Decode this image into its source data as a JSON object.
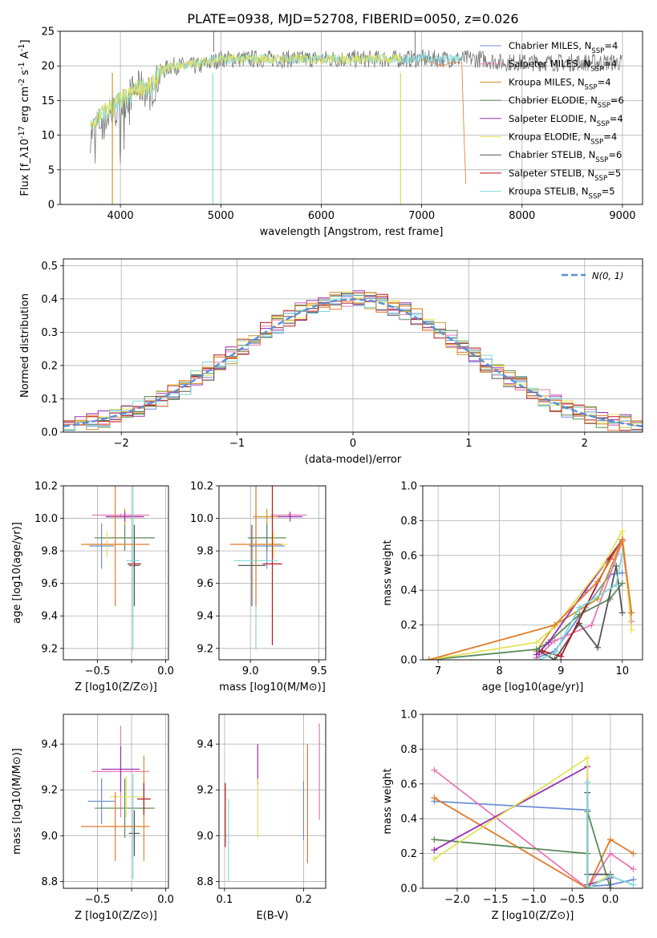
{
  "title": "PLATE=0938, MJD=52708, FIBERID=0050, z=0.026",
  "colors": {
    "Chabrier MILES": "#6b8fd6",
    "Salpeter MILES": "#e879b6",
    "Kroupa MILES": "#c9962a",
    "Chabrier ELODIE": "#5a8a5a",
    "Salpeter ELODIE": "#9b2fb0",
    "Kroupa ELODIE": "#e3e35a",
    "Chabrier STELIB": "#555555",
    "Salpeter STELIB": "#b5191e",
    "Kroupa STELIB": "#7fd7d7",
    "Orange": "#e07b28",
    "Lime": "#c8e64a",
    "Gaussian": "#5b8fd6"
  },
  "chart_data": [
    {
      "id": "spectrum",
      "type": "line",
      "xlabel": "wavelength [Angstrom, rest frame]",
      "ylabel": "Flux [f_λ10^{-17} erg cm^{-2} s^{-1} A^{-1}]",
      "xlim": [
        3400,
        9200
      ],
      "ylim": [
        0,
        25
      ],
      "xticks": [
        4000,
        5000,
        6000,
        7000,
        8000,
        9000
      ],
      "yticks": [
        0,
        5,
        10,
        15,
        20,
        25
      ],
      "legend_position": "top-right",
      "legend": [
        "Chabrier MILES, N_SSP=4",
        "Salpeter MILES, N_SSP=4",
        "Kroupa MILES, N_SSP=4",
        "Chabrier ELODIE, N_SSP=6",
        "Salpeter ELODIE, N_SSP=4",
        "Kroupa ELODIE, N_SSP=4",
        "Chabrier STELIB, N_SSP=6",
        "Salpeter STELIB, N_SSP=5",
        "Kroupa STELIB, N_SSP=5"
      ],
      "series": [
        {
          "name": "Chabrier STELIB, N_SSP=6",
          "color": "#777777",
          "x": [
            3700,
            3800,
            3900,
            4000,
            4100,
            4200,
            4300,
            4400,
            4500,
            4600,
            4800,
            5000,
            5200,
            5400,
            5600,
            5800,
            6000,
            6200,
            6400,
            6600,
            6800,
            7000,
            7200,
            7400,
            7600,
            7800,
            8000,
            8200,
            8400,
            8600,
            8800,
            9000
          ],
          "y": [
            10,
            12,
            13,
            14,
            16,
            17,
            16,
            19,
            20,
            20,
            20,
            21,
            21,
            21,
            21,
            21,
            21,
            21,
            21,
            21,
            21,
            21,
            21,
            21,
            21,
            20.5,
            20.5,
            20.5,
            20.5,
            20.5,
            20.5,
            20.5
          ],
          "noisy": true
        },
        {
          "name": "Kroupa STELIB, N_SSP=5",
          "color": "#7fd7d7",
          "x": [
            3700,
            3800,
            3900,
            4000,
            4100,
            4200,
            4300,
            4400,
            4500,
            4600,
            4800,
            5000,
            5200,
            5400,
            5600,
            5800,
            6000,
            6200,
            6400,
            6600,
            6800,
            7000,
            7200,
            7400
          ],
          "y": [
            11,
            13,
            14,
            15,
            16,
            17,
            17,
            19,
            20,
            20,
            20.5,
            21,
            21,
            21,
            21,
            21,
            21,
            21,
            21,
            21,
            21,
            21,
            21,
            21
          ]
        },
        {
          "name": "Salpeter STELIB, N_SSP=5",
          "color": "#e07b28",
          "x": [
            7000,
            7100,
            7200,
            7300,
            7400,
            7430,
            7450
          ],
          "y": [
            21,
            20.5,
            20,
            20.5,
            20.5,
            6,
            0
          ]
        },
        {
          "name": "Kroupa ELODIE, N_SSP=4",
          "color": "#e3e35a",
          "x": [
            3700,
            3800,
            3900,
            4000,
            4100,
            4200,
            4300,
            4400,
            4500,
            4600,
            4800,
            5000,
            5200,
            5400,
            5600,
            5800,
            6000,
            6200,
            6400,
            6600,
            6800
          ],
          "y": [
            11,
            13,
            14,
            15,
            16,
            17,
            17,
            19,
            20,
            20,
            20.5,
            21,
            21,
            21,
            21,
            21,
            21,
            21,
            21,
            21,
            21
          ]
        }
      ],
      "dips": [
        {
          "x": 3920,
          "y": 0,
          "color": "#c9962a"
        },
        {
          "x": 4920,
          "y": 0,
          "color": "#7fd7d7"
        },
        {
          "x": 6790,
          "y": 0,
          "color": "#c8e64a"
        }
      ]
    },
    {
      "id": "residuals",
      "type": "line",
      "xlabel": "(data-model)/error",
      "ylabel": "Normed distribution",
      "xlim": [
        -2.5,
        2.5
      ],
      "ylim": [
        0,
        0.52
      ],
      "xticks": [
        -2,
        -1,
        0,
        1,
        2
      ],
      "xticklabels": [
        "−2",
        "−1",
        "0",
        "1",
        "2"
      ],
      "yticks": [
        0,
        0.1,
        0.2,
        0.3,
        0.4,
        0.5
      ],
      "yticklabels": [
        "0.0",
        "0.1",
        "0.2",
        "0.3",
        "0.4",
        "0.5"
      ],
      "legend": [
        "N(0, 1)"
      ],
      "legend_position": "top-right",
      "gaussian": {
        "mu": 0,
        "sigma": 1
      },
      "bin_width": 0.1
    },
    {
      "id": "age-vs-z",
      "type": "scatter",
      "xlabel": "Z [log10(Z/Z⊙)]",
      "ylabel": "age [log10(age/yr)]",
      "xlim": [
        -0.75,
        0.02
      ],
      "ylim": [
        9.13,
        10.2
      ],
      "xticks": [
        -0.5,
        -0.25,
        0.0
      ],
      "xticklabels": [
        "−0.5",
        "",
        "0.0"
      ],
      "yticks": [
        9.2,
        9.4,
        9.6,
        9.8,
        10.0,
        10.2
      ],
      "yticklabels": [
        "9.2",
        "9.4",
        "9.6",
        "9.8",
        "10.0",
        "10.2"
      ],
      "points": [
        {
          "c": "#6b8fd6",
          "x": -0.47,
          "xerr": 0.09,
          "y": 9.83,
          "yerr": 0.14
        },
        {
          "c": "#e879b6",
          "x": -0.33,
          "xerr": 0.21,
          "y": 10.02,
          "yerr": 0.01
        },
        {
          "c": "#c9962a",
          "x": -0.3,
          "xerr": 0.14,
          "y": 10.01,
          "yerr": 0.05
        },
        {
          "c": "#5a8a5a",
          "x": -0.3,
          "xerr": 0.22,
          "y": 9.88,
          "yerr": 0.08
        },
        {
          "c": "#9b2fb0",
          "x": -0.3,
          "xerr": 0.14,
          "y": 10.01,
          "yerr": 0.03
        },
        {
          "c": "#e3e35a",
          "x": -0.43,
          "xerr": 0.11,
          "y": 9.84,
          "yerr": 0.08
        },
        {
          "c": "#555555",
          "x": -0.23,
          "xerr": 0.04,
          "y": 9.71,
          "yerr": 0.25
        },
        {
          "c": "#b5191e",
          "x": -0.23,
          "xerr": 0.05,
          "y": 9.72,
          "yerr": 0.02
        },
        {
          "c": "#7fd7d7",
          "x": -0.24,
          "xerr": 0.05,
          "y": 9.74,
          "yerr": 0.55
        },
        {
          "c": "#e07b28",
          "x": -0.37,
          "xerr": 0.25,
          "y": 9.84,
          "yerr": 0.38
        }
      ]
    },
    {
      "id": "age-vs-mass",
      "type": "scatter",
      "xlabel": "mass [log10(M/M⊙)]",
      "ylabel": "",
      "xlim": [
        8.77,
        9.55
      ],
      "ylim": [
        9.13,
        10.2
      ],
      "xticks": [
        9.0,
        9.5
      ],
      "xticklabels": [
        "9.0",
        "9.5"
      ],
      "yticks": [
        9.2,
        9.4,
        9.6,
        9.8,
        10.0,
        10.2
      ],
      "yticklabels": [
        "9.2",
        "9.4",
        "9.6",
        "9.8",
        "10.0",
        "10.2"
      ],
      "points": [
        {
          "c": "#6b8fd6",
          "x": 9.12,
          "xerr": 0.13,
          "y": 9.83,
          "yerr": 0.14
        },
        {
          "c": "#e879b6",
          "x": 9.28,
          "xerr": 0.13,
          "y": 10.02,
          "yerr": 0.01
        },
        {
          "c": "#c9962a",
          "x": 9.12,
          "xerr": 0.1,
          "y": 10.01,
          "yerr": 0.05
        },
        {
          "c": "#5a8a5a",
          "x": 9.12,
          "xerr": 0.14,
          "y": 9.88,
          "yerr": 0.08
        },
        {
          "c": "#9b2fb0",
          "x": 9.29,
          "xerr": 0.09,
          "y": 10.01,
          "yerr": 0.03
        },
        {
          "c": "#e3e35a",
          "x": 9.17,
          "xerr": 0.1,
          "y": 9.84,
          "yerr": 0.08
        },
        {
          "c": "#555555",
          "x": 9.01,
          "xerr": 0.1,
          "y": 9.71,
          "yerr": 0.25
        },
        {
          "c": "#b5191e",
          "x": 9.16,
          "xerr": 0.07,
          "y": 9.72,
          "yerr": 0.5
        },
        {
          "c": "#7fd7d7",
          "x": 9.04,
          "xerr": 0.16,
          "y": 9.74,
          "yerr": 0.55
        },
        {
          "c": "#e07b28",
          "x": 9.04,
          "xerr": 0.19,
          "y": 9.84,
          "yerr": 0.38
        }
      ]
    },
    {
      "id": "mass-weight-vs-age",
      "type": "line",
      "xlabel": "age [log10(age/yr)]",
      "ylabel": "mass weight",
      "xlim": [
        6.75,
        10.33
      ],
      "ylim": [
        0,
        1.0
      ],
      "xticks": [
        7,
        8,
        9,
        10
      ],
      "yticks": [
        0,
        0.2,
        0.4,
        0.6,
        0.8,
        1.0
      ],
      "yticklabels": [
        "0.0",
        "0.2",
        "0.4",
        "0.6",
        "0.8",
        "1.0"
      ],
      "series": [
        {
          "c": "#6b8fd6",
          "x": [
            8.6,
            8.9,
            9.4,
            9.8,
            10.0
          ],
          "y": [
            0.01,
            0.05,
            0.3,
            0.49,
            0.5
          ]
        },
        {
          "c": "#e879b6",
          "x": [
            8.6,
            8.9,
            9.5,
            10.0,
            10.15
          ],
          "y": [
            0.01,
            0.11,
            0.2,
            0.68,
            0.22
          ]
        },
        {
          "c": "#c9962a",
          "x": [
            8.6,
            8.9,
            9.6,
            10.0,
            10.15
          ],
          "y": [
            0.05,
            0.2,
            0.35,
            0.69,
            0.27
          ]
        },
        {
          "c": "#5a8a5a",
          "x": [
            6.85,
            8.6,
            8.8,
            9.3,
            9.8,
            10.0
          ],
          "y": [
            0.0,
            0.06,
            0.1,
            0.26,
            0.35,
            0.44
          ]
        },
        {
          "c": "#9b2fb0",
          "x": [
            8.6,
            8.8,
            9.4,
            10.0
          ],
          "y": [
            0.03,
            0.1,
            0.4,
            0.69
          ]
        },
        {
          "c": "#e3e35a",
          "x": [
            6.85,
            8.6,
            8.9,
            9.7,
            10.0,
            10.15
          ],
          "y": [
            0.0,
            0.1,
            0.19,
            0.55,
            0.74,
            0.17
          ]
        },
        {
          "c": "#555555",
          "x": [
            8.65,
            8.9,
            9.3,
            9.6,
            9.9,
            10.0
          ],
          "y": [
            0.05,
            0.0,
            0.21,
            0.07,
            0.54,
            0.27
          ]
        },
        {
          "c": "#b5191e",
          "x": [
            8.7,
            9.0,
            9.8,
            10.0
          ],
          "y": [
            0.05,
            0.02,
            0.58,
            0.69
          ]
        },
        {
          "c": "#7fd7d7",
          "x": [
            8.65,
            8.9,
            9.3,
            9.9,
            10.0
          ],
          "y": [
            0.0,
            0.04,
            0.3,
            0.43,
            0.61
          ]
        },
        {
          "c": "#e07b28",
          "x": [
            6.85,
            8.9,
            9.6,
            10.0,
            10.15
          ],
          "y": [
            0.0,
            0.2,
            0.45,
            0.69,
            0.27
          ]
        }
      ]
    },
    {
      "id": "mass-vs-z",
      "type": "scatter",
      "xlabel": "Z [log10(Z/Z⊙)]",
      "ylabel": "mass [log10(M/M⊙)]",
      "xlim": [
        -0.75,
        0.02
      ],
      "ylim": [
        8.77,
        9.53
      ],
      "xticks": [
        -0.5,
        -0.25,
        0.0
      ],
      "xticklabels": [
        "−0.5",
        "",
        "0.0"
      ],
      "yticks": [
        8.8,
        9.0,
        9.2,
        9.4
      ],
      "yticklabels": [
        "8.8",
        "9.0",
        "9.2",
        "9.4"
      ],
      "points": [
        {
          "c": "#6b8fd6",
          "x": -0.47,
          "xerr": 0.1,
          "y": 9.15,
          "yerr": 0.1
        },
        {
          "c": "#e879b6",
          "x": -0.33,
          "xerr": 0.21,
          "y": 9.28,
          "yerr": 0.2
        },
        {
          "c": "#c9962a",
          "x": -0.16,
          "xerr": 0.05,
          "y": 9.12,
          "yerr": 0.23
        },
        {
          "c": "#5a8a5a",
          "x": -0.3,
          "xerr": 0.22,
          "y": 9.12,
          "yerr": 0.13
        },
        {
          "c": "#9b2fb0",
          "x": -0.33,
          "xerr": 0.14,
          "y": 9.29,
          "yerr": 0.1
        },
        {
          "c": "#e3e35a",
          "x": -0.29,
          "xerr": 0.12,
          "y": 9.17,
          "yerr": 0.09
        },
        {
          "c": "#555555",
          "x": -0.23,
          "xerr": 0.04,
          "y": 9.01,
          "yerr": 0.1
        },
        {
          "c": "#b5191e",
          "x": -0.16,
          "xerr": 0.05,
          "y": 9.16,
          "yerr": 0.07
        },
        {
          "c": "#7fd7d7",
          "x": -0.24,
          "xerr": 0.05,
          "y": 9.04,
          "yerr": 0.23
        },
        {
          "c": "#e07b28",
          "x": -0.37,
          "xerr": 0.25,
          "y": 9.04,
          "yerr": 0.15
        }
      ]
    },
    {
      "id": "mass-vs-ebv",
      "type": "scatter",
      "xlabel": "E(B-V)",
      "ylabel": "",
      "xlim": [
        0.093,
        0.228
      ],
      "ylim": [
        8.77,
        9.53
      ],
      "xticks": [
        0.1,
        0.2
      ],
      "xticklabels": [
        "0.1",
        "0.2"
      ],
      "yticks": [
        8.8,
        9.0,
        9.2,
        9.4
      ],
      "yticklabels": [
        "8.8",
        "9.0",
        "9.2",
        "9.4"
      ],
      "points": [
        {
          "c": "#b5191e",
          "x": 0.101,
          "y": 9.09,
          "yerr": 0.14
        },
        {
          "c": "#7fd7d7",
          "x": 0.105,
          "y": 8.98,
          "yerr": 0.18
        },
        {
          "c": "#9b2fb0",
          "x": 0.142,
          "y": 9.31,
          "yerr": 0.09
        },
        {
          "c": "#e3e35a",
          "x": 0.142,
          "y": 9.12,
          "yerr": 0.13
        },
        {
          "c": "#6b8fd6",
          "x": 0.2,
          "y": 9.11,
          "yerr": 0.13
        },
        {
          "c": "#e07b28",
          "x": 0.205,
          "y": 9.14,
          "yerr": 0.26
        },
        {
          "c": "#e879b6",
          "x": 0.22,
          "y": 9.28,
          "yerr": 0.21
        }
      ]
    },
    {
      "id": "mass-weight-vs-z",
      "type": "line",
      "xlabel": "Z [log10(Z/Z⊙)]",
      "ylabel": "mass weight",
      "xlim": [
        -2.45,
        0.42
      ],
      "ylim": [
        0,
        1.0
      ],
      "xticks": [
        -2.0,
        -1.5,
        -1.0,
        -0.5,
        0.0
      ],
      "xticklabels": [
        "−2.0",
        "−1.5",
        "−1.0",
        "−0.5",
        "0.0"
      ],
      "yticks": [
        0,
        0.2,
        0.4,
        0.6,
        0.8,
        1.0
      ],
      "yticklabels": [
        "0.0",
        "0.2",
        "0.4",
        "0.6",
        "0.8",
        "1.0"
      ],
      "series": [
        {
          "c": "#6b8fd6",
          "x": [
            -2.3,
            -0.3,
            -0.3,
            0.0,
            0.3
          ],
          "y": [
            0.5,
            0.45,
            0.01,
            0.02,
            0.05
          ]
        },
        {
          "c": "#e879b6",
          "x": [
            -2.3,
            -0.3,
            0.0,
            0.3
          ],
          "y": [
            0.68,
            0.0,
            0.2,
            0.11
          ]
        },
        {
          "c": "#e07b28",
          "x": [
            -2.3,
            -0.3,
            0.0,
            0.3
          ],
          "y": [
            0.52,
            0.0,
            0.28,
            0.2
          ]
        },
        {
          "c": "#5a8a5a",
          "x": [
            -2.3,
            -0.3,
            -0.3,
            0.0
          ],
          "y": [
            0.28,
            0.2,
            0.44,
            0.0
          ]
        },
        {
          "c": "#9b2fb0",
          "x": [
            -2.3,
            -0.3,
            -0.3,
            0.0
          ],
          "y": [
            0.22,
            0.7,
            0.02,
            0.06
          ]
        },
        {
          "c": "#e3e35a",
          "x": [
            -2.3,
            -0.3,
            -0.3,
            0.0
          ],
          "y": [
            0.17,
            0.75,
            0.0,
            0.08
          ]
        },
        {
          "c": "#555555",
          "x": [
            -0.3,
            -0.3,
            0.0,
            0.0
          ],
          "y": [
            0.55,
            0.08,
            0.08,
            0.0
          ]
        },
        {
          "c": "#7fd7d7",
          "x": [
            -0.3,
            -0.3,
            0.0,
            0.3
          ],
          "y": [
            0.61,
            0.0,
            0.07,
            0.02
          ]
        }
      ]
    }
  ]
}
